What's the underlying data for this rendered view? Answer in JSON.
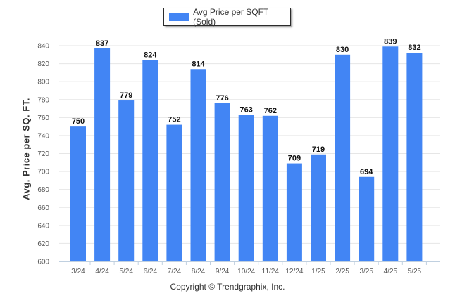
{
  "legend": {
    "label": "Avg Price per SQFT (Sold)"
  },
  "footer": {
    "copyright": "Copyright © Trendgraphix, Inc."
  },
  "colors": {
    "bar": "#4285f4",
    "grid": "#e6e6e6",
    "axis": "#c0d0e0"
  },
  "chart_data": {
    "type": "bar",
    "title": "",
    "xlabel": "",
    "ylabel": "Avg. Price per SQ. FT.",
    "ylim": [
      600,
      840
    ],
    "yticks": [
      600,
      620,
      640,
      660,
      680,
      700,
      720,
      740,
      760,
      780,
      800,
      820,
      840
    ],
    "grid": true,
    "legend_position": "top-center",
    "categories": [
      "3/24",
      "4/24",
      "5/24",
      "6/24",
      "7/24",
      "8/24",
      "9/24",
      "10/24",
      "11/24",
      "12/24",
      "1/25",
      "2/25",
      "3/25",
      "4/25",
      "5/25"
    ],
    "series": [
      {
        "name": "Avg Price per SQFT (Sold)",
        "values": [
          750,
          837,
          779,
          824,
          752,
          814,
          776,
          763,
          762,
          709,
          719,
          830,
          694,
          839,
          832
        ]
      }
    ]
  }
}
